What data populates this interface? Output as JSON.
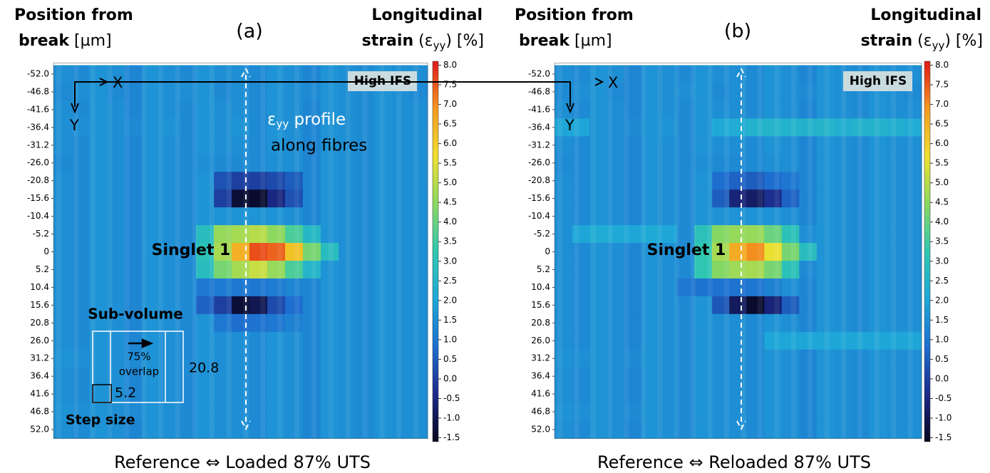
{
  "chart_data": [
    {
      "type": "heatmap",
      "title": "(a)",
      "caption": "Reference ⇔ Loaded 87% UTS",
      "y_label": [
        "Position from",
        "break",
        " [µm]"
      ],
      "colorbar_label": [
        "Longitudinal",
        "strain",
        " (ε",
        "yy",
        ") [%]"
      ],
      "ylim": [
        -54.6,
        54.6
      ],
      "yticks": [
        {
          "value": -52,
          "label": "-52.0"
        },
        -46.8,
        -41.6,
        -36.4,
        -31.2,
        {
          "value": -26,
          "label": "-26.0"
        },
        -20.8,
        -15.6,
        -10.4,
        -5.2,
        0,
        5.2,
        10.4,
        15.6,
        20.8,
        {
          "value": 26,
          "label": "26.0"
        },
        31.2,
        36.4,
        41.6,
        46.8,
        {
          "value": 52,
          "label": "52.0"
        }
      ],
      "zlim": [
        -1.6,
        8.1
      ],
      "zticks": [
        {
          "value": 8,
          "label": "8.0"
        },
        7.5,
        {
          "value": 7,
          "label": "7.0"
        },
        6.5,
        {
          "value": 6,
          "label": "6.0"
        },
        5.5,
        {
          "value": 5,
          "label": "5.0"
        },
        4.5,
        {
          "value": 4,
          "label": "4.0"
        },
        3.5,
        {
          "value": 3,
          "label": "3.0"
        },
        2.5,
        {
          "value": 2,
          "label": "2.0"
        },
        1.5,
        {
          "value": 1,
          "label": "1.0"
        },
        0.5,
        {
          "value": 0,
          "label": "0.0"
        },
        -0.5,
        {
          "value": -1,
          "label": "-1.0"
        },
        -1.5
      ],
      "colormap": [
        "#06061c",
        "#1c2a8a",
        "#1e6fd0",
        "#1ea8d8",
        "#30c8b0",
        "#8ad860",
        "#f0e030",
        "#f59a20",
        "#e01818"
      ],
      "annotations": {
        "x_arrow": "X",
        "y_arrow": "Y",
        "badge": "High IFS",
        "feature": "Singlet 1",
        "profile": [
          "ε",
          "yy",
          " profile"
        ],
        "profile_2": "along fibres",
        "sub_volume": "Sub-volume",
        "overlap": [
          "75%",
          "overlap"
        ],
        "window": "20.8",
        "step": "5.2",
        "step_label": "Step size"
      },
      "values": [
        [
          1.5,
          1.4,
          1.6,
          1.5,
          1.3,
          1.6,
          1.5,
          1.4,
          1.6,
          1.5,
          1.5,
          1.4,
          1.6,
          1.5,
          1.3,
          1.6,
          1.5,
          1.4,
          1.6,
          1.5,
          1.5
        ],
        [
          1.4,
          1.5,
          1.6,
          1.4,
          1.3,
          1.6,
          1.5,
          1.5,
          1.6,
          1.4,
          1.5,
          1.4,
          1.6,
          1.5,
          1.4,
          1.6,
          1.5,
          1.4,
          1.6,
          1.5,
          1.4
        ],
        [
          1.5,
          1.4,
          1.6,
          1.5,
          1.3,
          1.6,
          1.5,
          1.4,
          1.6,
          1.5,
          1.5,
          1.4,
          1.6,
          1.5,
          1.3,
          1.6,
          1.5,
          1.4,
          1.6,
          1.5,
          1.5
        ],
        [
          1.5,
          1.5,
          1.6,
          1.5,
          1.4,
          1.6,
          1.6,
          1.4,
          1.6,
          1.5,
          1.6,
          1.4,
          1.6,
          1.5,
          1.3,
          1.6,
          1.5,
          1.4,
          1.6,
          1.5,
          1.5
        ],
        [
          1.5,
          1.4,
          1.6,
          1.5,
          1.3,
          1.6,
          1.5,
          1.4,
          1.6,
          1.5,
          1.5,
          1.4,
          1.6,
          1.5,
          1.3,
          1.6,
          1.5,
          1.4,
          1.6,
          1.5,
          1.5
        ],
        [
          1.4,
          1.4,
          1.6,
          1.5,
          1.3,
          1.6,
          1.5,
          1.4,
          1.5,
          1.4,
          1.4,
          1.4,
          1.5,
          1.5,
          1.3,
          1.6,
          1.5,
          1.4,
          1.6,
          1.5,
          1.5
        ],
        [
          1.5,
          1.4,
          1.6,
          1.5,
          1.3,
          1.6,
          1.5,
          1.4,
          1.6,
          0.3,
          0.0,
          0.0,
          0.2,
          0.5,
          1.3,
          1.6,
          1.5,
          1.4,
          1.6,
          1.5,
          1.5
        ],
        [
          1.5,
          1.4,
          1.6,
          1.5,
          1.3,
          1.6,
          1.5,
          1.4,
          1.6,
          0.0,
          -1.3,
          -1.4,
          -0.5,
          0.3,
          1.3,
          1.6,
          1.5,
          1.4,
          1.6,
          1.5,
          1.5
        ],
        [
          1.5,
          1.4,
          1.6,
          1.5,
          1.3,
          1.6,
          1.5,
          1.4,
          1.6,
          1.6,
          1.6,
          1.6,
          1.6,
          1.5,
          1.3,
          1.6,
          1.5,
          1.4,
          1.6,
          1.5,
          1.5
        ],
        [
          1.5,
          1.4,
          1.6,
          1.5,
          1.3,
          1.6,
          1.5,
          1.4,
          2.8,
          4.6,
          4.8,
          5.0,
          4.5,
          3.6,
          2.6,
          1.6,
          1.5,
          1.4,
          1.6,
          1.5,
          1.5
        ],
        [
          1.5,
          1.4,
          1.6,
          1.5,
          1.3,
          1.6,
          1.5,
          1.4,
          3.0,
          4.8,
          6.5,
          7.6,
          7.4,
          6.2,
          4.2,
          2.8,
          1.5,
          1.4,
          1.6,
          1.5,
          1.5
        ],
        [
          1.5,
          1.4,
          1.6,
          1.5,
          1.3,
          1.6,
          1.5,
          1.4,
          2.8,
          4.2,
          4.8,
          5.2,
          4.6,
          3.6,
          2.5,
          1.6,
          1.5,
          1.4,
          1.6,
          1.5,
          1.5
        ],
        [
          1.5,
          1.4,
          1.6,
          1.5,
          1.3,
          1.6,
          1.5,
          1.4,
          1.0,
          1.1,
          1.0,
          1.0,
          1.1,
          1.3,
          1.3,
          1.6,
          1.5,
          1.4,
          1.6,
          1.5,
          1.5
        ],
        [
          1.5,
          1.4,
          1.6,
          1.5,
          1.3,
          1.6,
          1.5,
          1.4,
          0.6,
          0.0,
          -1.3,
          -1.0,
          0.2,
          0.8,
          1.3,
          1.6,
          1.5,
          1.4,
          1.6,
          1.5,
          1.5
        ],
        [
          1.5,
          1.4,
          1.6,
          1.5,
          1.3,
          1.6,
          1.5,
          1.4,
          1.6,
          1.0,
          0.8,
          0.9,
          1.0,
          1.2,
          1.3,
          1.6,
          1.5,
          1.4,
          1.6,
          1.5,
          1.5
        ],
        [
          1.5,
          1.4,
          1.6,
          1.5,
          1.3,
          1.6,
          1.5,
          1.4,
          1.6,
          1.5,
          1.5,
          1.4,
          1.6,
          1.5,
          1.3,
          1.6,
          1.5,
          1.4,
          1.6,
          1.5,
          1.5
        ],
        [
          1.6,
          1.5,
          1.6,
          1.5,
          1.4,
          1.6,
          1.5,
          1.4,
          1.6,
          1.5,
          1.5,
          1.4,
          1.6,
          1.5,
          1.3,
          1.6,
          1.5,
          1.4,
          1.6,
          1.5,
          1.5
        ],
        [
          1.5,
          1.4,
          1.6,
          1.5,
          1.3,
          1.6,
          1.5,
          1.4,
          1.6,
          1.5,
          1.5,
          1.4,
          1.6,
          1.5,
          1.3,
          1.6,
          1.5,
          1.4,
          1.6,
          1.5,
          1.5
        ],
        [
          1.5,
          1.4,
          1.6,
          1.5,
          1.3,
          1.6,
          1.5,
          1.4,
          1.6,
          1.5,
          1.5,
          1.4,
          1.6,
          1.5,
          1.3,
          1.6,
          1.5,
          1.4,
          1.6,
          1.5,
          1.5
        ],
        [
          1.6,
          1.5,
          1.6,
          1.5,
          1.4,
          1.6,
          1.5,
          1.4,
          1.6,
          1.5,
          1.5,
          1.4,
          1.6,
          1.5,
          1.3,
          1.6,
          1.5,
          1.4,
          1.6,
          1.5,
          1.5
        ],
        [
          1.5,
          1.4,
          1.6,
          1.5,
          1.3,
          1.6,
          1.5,
          1.4,
          1.6,
          1.5,
          1.5,
          1.4,
          1.6,
          1.5,
          1.3,
          1.6,
          1.5,
          1.4,
          1.6,
          1.5,
          1.5
        ]
      ]
    },
    {
      "type": "heatmap",
      "title": "(b)",
      "caption": "Reference ⇔ Reloaded 87% UTS",
      "y_label": [
        "Position from",
        "break",
        " [µm]"
      ],
      "colorbar_label": [
        "Longitudinal",
        "strain",
        " (ε",
        "yy",
        ") [%]"
      ],
      "ylim": [
        -54.6,
        54.6
      ],
      "yticks": [
        {
          "value": -52,
          "label": "-52.0"
        },
        -46.8,
        -41.6,
        -36.4,
        -31.2,
        {
          "value": -26,
          "label": "-26.0"
        },
        -20.8,
        -15.6,
        -10.4,
        -5.2,
        0,
        5.2,
        10.4,
        15.6,
        20.8,
        {
          "value": 26,
          "label": "26.0"
        },
        31.2,
        36.4,
        41.6,
        46.8,
        {
          "value": 52,
          "label": "52.0"
        }
      ],
      "zlim": [
        -1.6,
        8.1
      ],
      "zticks": [
        {
          "value": 8,
          "label": "8.0"
        },
        7.5,
        {
          "value": 7,
          "label": "7.0"
        },
        6.5,
        {
          "value": 6,
          "label": "6.0"
        },
        5.5,
        {
          "value": 5,
          "label": "5.0"
        },
        4.5,
        {
          "value": 4,
          "label": "4.0"
        },
        3.5,
        {
          "value": 3,
          "label": "3.0"
        },
        2.5,
        {
          "value": 2,
          "label": "2.0"
        },
        1.5,
        {
          "value": 1,
          "label": "1.0"
        },
        0.5,
        {
          "value": 0,
          "label": "0.0"
        },
        -0.5,
        {
          "value": -1,
          "label": "-1.0"
        },
        -1.5
      ],
      "colormap": [
        "#06061c",
        "#1c2a8a",
        "#1e6fd0",
        "#1ea8d8",
        "#30c8b0",
        "#8ad860",
        "#f0e030",
        "#f59a20",
        "#e01818"
      ],
      "annotations": {
        "x_arrow": "X",
        "y_arrow": "Y",
        "badge": "High IFS",
        "feature": "Singlet 1"
      },
      "values": [
        [
          1.5,
          1.4,
          1.6,
          1.5,
          1.3,
          1.6,
          1.5,
          1.4,
          1.6,
          1.5,
          1.5,
          1.4,
          1.6,
          1.5,
          1.3,
          1.6,
          1.5,
          1.4,
          1.6,
          1.5,
          1.5
        ],
        [
          1.4,
          1.5,
          1.6,
          1.4,
          1.3,
          1.6,
          1.5,
          1.5,
          1.6,
          1.4,
          1.5,
          1.4,
          1.6,
          1.5,
          1.4,
          1.6,
          1.5,
          1.4,
          1.6,
          1.5,
          1.4
        ],
        [
          1.5,
          1.4,
          1.6,
          1.5,
          1.3,
          1.6,
          1.5,
          1.4,
          1.6,
          1.5,
          1.5,
          1.4,
          1.6,
          1.5,
          1.3,
          1.6,
          1.5,
          1.4,
          1.6,
          1.5,
          1.5
        ],
        [
          2.0,
          2.0,
          1.6,
          1.5,
          1.4,
          1.6,
          1.6,
          1.4,
          1.6,
          2.1,
          2.2,
          2.4,
          2.5,
          2.4,
          2.4,
          2.5,
          2.3,
          2.4,
          2.4,
          2.3,
          2.2
        ],
        [
          1.5,
          1.4,
          1.6,
          1.5,
          1.3,
          1.6,
          1.5,
          1.4,
          1.6,
          1.5,
          1.5,
          1.4,
          1.6,
          1.5,
          1.3,
          1.6,
          1.5,
          1.4,
          1.6,
          1.5,
          1.5
        ],
        [
          1.4,
          1.4,
          1.6,
          1.5,
          1.3,
          1.6,
          1.5,
          1.4,
          1.5,
          1.4,
          1.4,
          1.4,
          1.5,
          1.5,
          1.3,
          1.6,
          1.5,
          1.4,
          1.6,
          1.5,
          1.5
        ],
        [
          1.5,
          1.4,
          1.6,
          1.5,
          1.3,
          1.6,
          1.5,
          1.4,
          1.6,
          0.8,
          0.6,
          0.5,
          0.8,
          1.0,
          1.3,
          1.6,
          1.5,
          1.4,
          1.6,
          1.5,
          1.5
        ],
        [
          1.5,
          1.4,
          1.6,
          1.5,
          1.3,
          1.6,
          1.5,
          1.4,
          1.6,
          0.5,
          -0.6,
          -0.8,
          -0.3,
          0.6,
          1.3,
          1.6,
          1.5,
          1.4,
          1.6,
          1.5,
          1.5
        ],
        [
          1.5,
          1.4,
          1.6,
          1.5,
          1.3,
          1.6,
          1.5,
          1.4,
          1.6,
          1.6,
          1.6,
          1.6,
          1.6,
          1.5,
          1.3,
          1.6,
          1.5,
          1.4,
          1.6,
          1.5,
          1.5
        ],
        [
          1.5,
          2.0,
          2.2,
          2.1,
          2.0,
          2.1,
          2.0,
          1.4,
          3.0,
          4.4,
          4.6,
          4.6,
          4.0,
          3.0,
          1.5,
          1.6,
          1.5,
          1.4,
          1.6,
          1.5,
          1.5
        ],
        [
          1.5,
          1.4,
          1.6,
          1.5,
          1.3,
          1.6,
          1.5,
          1.4,
          3.2,
          4.8,
          6.6,
          7.0,
          5.6,
          4.2,
          2.8,
          1.6,
          1.5,
          1.4,
          1.6,
          1.5,
          1.5
        ],
        [
          1.5,
          1.4,
          1.6,
          1.5,
          1.3,
          1.6,
          1.5,
          1.4,
          3.2,
          4.4,
          4.7,
          4.8,
          4.2,
          3.0,
          1.4,
          1.6,
          1.5,
          1.4,
          1.6,
          1.5,
          1.5
        ],
        [
          1.5,
          1.4,
          1.6,
          1.5,
          1.3,
          1.6,
          1.5,
          1.0,
          0.9,
          0.9,
          0.9,
          1.0,
          1.2,
          1.5,
          1.3,
          1.6,
          1.5,
          1.4,
          1.6,
          1.5,
          1.5
        ],
        [
          1.5,
          1.4,
          1.6,
          1.5,
          1.3,
          1.6,
          1.5,
          1.4,
          1.6,
          0.4,
          -0.9,
          -1.4,
          -0.6,
          0.5,
          1.3,
          1.6,
          1.5,
          1.4,
          1.6,
          1.5,
          1.5
        ],
        [
          1.5,
          1.4,
          1.6,
          1.5,
          1.3,
          1.6,
          1.5,
          1.4,
          1.6,
          1.5,
          1.5,
          1.4,
          1.6,
          1.5,
          1.3,
          1.6,
          1.5,
          1.4,
          1.6,
          1.5,
          1.5
        ],
        [
          1.5,
          1.4,
          1.6,
          1.5,
          1.3,
          1.6,
          1.5,
          1.4,
          1.6,
          1.5,
          1.5,
          1.4,
          2.0,
          2.0,
          2.0,
          2.0,
          2.0,
          2.0,
          2.0,
          2.0,
          2.0
        ],
        [
          1.6,
          1.5,
          1.6,
          1.5,
          1.4,
          1.6,
          1.5,
          1.4,
          1.6,
          1.5,
          1.5,
          1.4,
          1.6,
          1.5,
          1.3,
          1.6,
          1.5,
          1.4,
          1.6,
          1.5,
          1.5
        ],
        [
          1.5,
          1.4,
          1.6,
          1.5,
          1.3,
          1.6,
          1.5,
          1.4,
          1.6,
          1.5,
          1.5,
          1.4,
          1.6,
          1.5,
          1.3,
          1.6,
          1.5,
          1.4,
          1.6,
          1.5,
          1.5
        ],
        [
          1.5,
          1.4,
          1.6,
          1.5,
          1.3,
          1.6,
          1.5,
          1.4,
          1.6,
          1.5,
          1.5,
          1.4,
          1.6,
          1.5,
          1.3,
          1.6,
          1.5,
          1.4,
          1.6,
          1.5,
          1.5
        ],
        [
          1.6,
          1.5,
          1.6,
          1.5,
          1.4,
          1.6,
          1.5,
          1.4,
          1.6,
          1.5,
          1.5,
          1.4,
          1.6,
          1.5,
          1.3,
          1.6,
          1.5,
          1.4,
          1.6,
          1.5,
          1.5
        ],
        [
          1.5,
          1.4,
          1.6,
          1.5,
          1.3,
          1.6,
          1.5,
          1.4,
          1.6,
          1.5,
          1.5,
          1.4,
          1.6,
          1.5,
          1.3,
          1.6,
          1.5,
          1.4,
          1.6,
          1.5,
          1.5
        ]
      ]
    }
  ]
}
